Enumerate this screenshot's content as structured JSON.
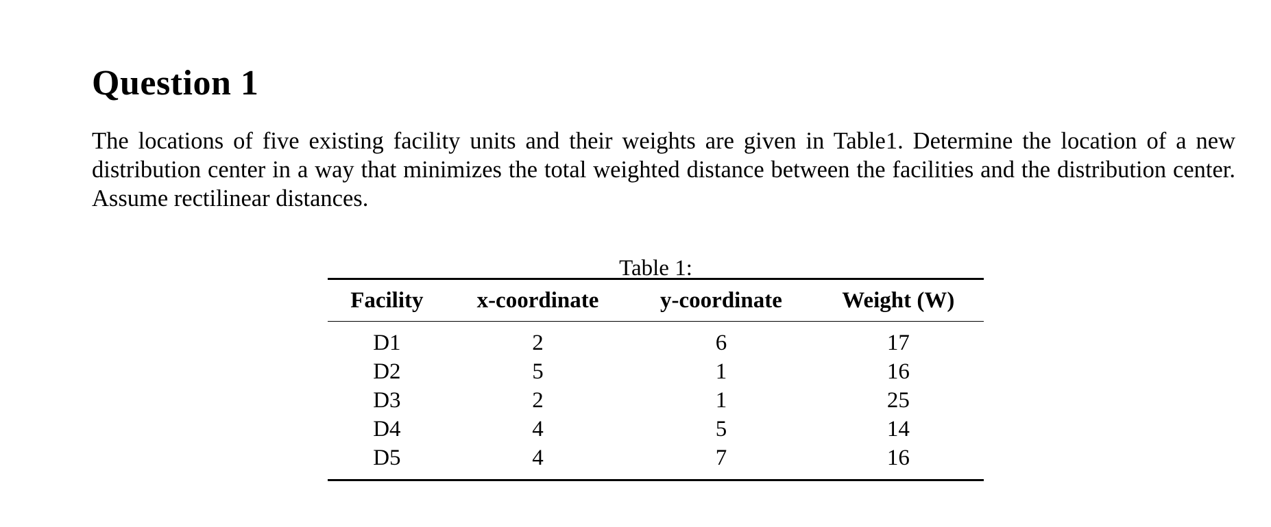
{
  "question": {
    "title": "Question 1",
    "body": "The locations of five existing facility units and their weights are given in Table1. Determine the location of a new distribution center in a way that minimizes the total weighted distance between the facilities and the distribution center. Assume rectilinear distances."
  },
  "table": {
    "caption": "Table 1:",
    "headers": [
      "Facility",
      "x-coordinate",
      "y-coordinate",
      "Weight (W)"
    ],
    "rows": [
      [
        "D1",
        "2",
        "6",
        "17"
      ],
      [
        "D2",
        "5",
        "1",
        "16"
      ],
      [
        "D3",
        "2",
        "1",
        "25"
      ],
      [
        "D4",
        "4",
        "5",
        "14"
      ],
      [
        "D5",
        "4",
        "7",
        "16"
      ]
    ]
  }
}
